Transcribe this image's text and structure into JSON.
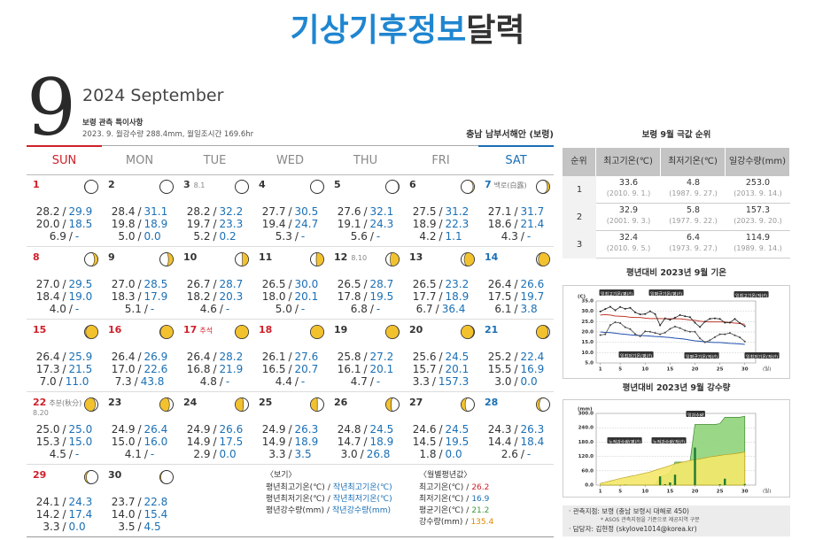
{
  "title": {
    "main": "기상기후정보",
    "sub": "달력"
  },
  "header": {
    "month": "9",
    "year_month": "2024 September",
    "notes_title": "보령 관측 특이사항",
    "notes": "2023. 9. 월강수량 288.4mm, 월일조시간 169.6hr",
    "region": "충남 남부서해안 (보령)"
  },
  "separator": "/",
  "weekdays": [
    "SUN",
    "MON",
    "TUE",
    "WED",
    "THU",
    "FRI",
    "SAT"
  ],
  "days": [
    {
      "date": 1,
      "max": [
        "28.2",
        "29.9"
      ],
      "min": [
        "20.0",
        "18.5"
      ],
      "precip": [
        "6.9",
        "-"
      ]
    },
    {
      "date": 2,
      "max": [
        "28.4",
        "31.1"
      ],
      "min": [
        "19.8",
        "18.9"
      ],
      "precip": [
        "5.0",
        "0.0"
      ]
    },
    {
      "date": 3,
      "lunar": "8.1",
      "max": [
        "28.2",
        "32.2"
      ],
      "min": [
        "19.7",
        "23.3"
      ],
      "precip": [
        "5.2",
        "0.2"
      ]
    },
    {
      "date": 4,
      "max": [
        "27.7",
        "30.5"
      ],
      "min": [
        "19.4",
        "24.7"
      ],
      "precip": [
        "5.3",
        "-"
      ]
    },
    {
      "date": 5,
      "max": [
        "27.6",
        "32.1"
      ],
      "min": [
        "19.1",
        "24.3"
      ],
      "precip": [
        "5.6",
        "-"
      ]
    },
    {
      "date": 6,
      "max": [
        "27.5",
        "31.2"
      ],
      "min": [
        "18.9",
        "22.3"
      ],
      "precip": [
        "4.2",
        "1.1"
      ]
    },
    {
      "date": 7,
      "note": "백로(白露)",
      "max": [
        "27.1",
        "31.7"
      ],
      "min": [
        "18.6",
        "21.4"
      ],
      "precip": [
        "4.3",
        "-"
      ]
    },
    {
      "date": 8,
      "max": [
        "27.0",
        "29.5"
      ],
      "min": [
        "18.4",
        "19.0"
      ],
      "precip": [
        "4.0",
        "-"
      ]
    },
    {
      "date": 9,
      "max": [
        "27.0",
        "28.5"
      ],
      "min": [
        "18.3",
        "17.9"
      ],
      "precip": [
        "5.1",
        "-"
      ]
    },
    {
      "date": 10,
      "max": [
        "26.7",
        "28.7"
      ],
      "min": [
        "18.2",
        "20.3"
      ],
      "precip": [
        "4.6",
        "-"
      ]
    },
    {
      "date": 11,
      "max": [
        "26.5",
        "30.0"
      ],
      "min": [
        "18.0",
        "20.1"
      ],
      "precip": [
        "5.0",
        "-"
      ]
    },
    {
      "date": 12,
      "lunar": "8.10",
      "max": [
        "26.5",
        "28.7"
      ],
      "min": [
        "17.8",
        "19.5"
      ],
      "precip": [
        "6.8",
        "-"
      ]
    },
    {
      "date": 13,
      "max": [
        "26.5",
        "23.2"
      ],
      "min": [
        "17.7",
        "18.9"
      ],
      "precip": [
        "6.7",
        "36.4"
      ]
    },
    {
      "date": 14,
      "max": [
        "26.4",
        "26.6"
      ],
      "min": [
        "17.5",
        "19.7"
      ],
      "precip": [
        "6.1",
        "3.8"
      ]
    },
    {
      "date": 15,
      "max": [
        "26.4",
        "25.9"
      ],
      "min": [
        "17.3",
        "21.5"
      ],
      "precip": [
        "7.0",
        "11.0"
      ]
    },
    {
      "date": 16,
      "holiday": true,
      "max": [
        "26.4",
        "26.9"
      ],
      "min": [
        "17.0",
        "22.6"
      ],
      "precip": [
        "7.3",
        "43.8"
      ]
    },
    {
      "date": 17,
      "holiday": true,
      "note": "추석",
      "max": [
        "26.4",
        "28.2"
      ],
      "min": [
        "16.8",
        "21.9"
      ],
      "precip": [
        "4.8",
        "-"
      ]
    },
    {
      "date": 18,
      "holiday": true,
      "max": [
        "26.1",
        "27.6"
      ],
      "min": [
        "16.5",
        "20.7"
      ],
      "precip": [
        "4.4",
        "-"
      ]
    },
    {
      "date": 19,
      "max": [
        "25.8",
        "27.2"
      ],
      "min": [
        "16.1",
        "20.1"
      ],
      "precip": [
        "4.7",
        "-"
      ]
    },
    {
      "date": 20,
      "max": [
        "25.6",
        "24.5"
      ],
      "min": [
        "15.7",
        "20.1"
      ],
      "precip": [
        "3.3",
        "157.3"
      ]
    },
    {
      "date": 21,
      "max": [
        "25.2",
        "22.4"
      ],
      "min": [
        "15.5",
        "16.9"
      ],
      "precip": [
        "3.0",
        "0.0"
      ]
    },
    {
      "date": 22,
      "note": "추분(秋分)",
      "lunar": "8.20",
      "max": [
        "25.0",
        "25.0"
      ],
      "min": [
        "15.3",
        "15.0"
      ],
      "precip": [
        "4.5",
        "-"
      ]
    },
    {
      "date": 23,
      "max": [
        "24.9",
        "26.4"
      ],
      "min": [
        "15.0",
        "16.0"
      ],
      "precip": [
        "4.1",
        "-"
      ]
    },
    {
      "date": 24,
      "max": [
        "24.9",
        "26.6"
      ],
      "min": [
        "14.9",
        "17.5"
      ],
      "precip": [
        "2.9",
        "0.0"
      ]
    },
    {
      "date": 25,
      "max": [
        "24.9",
        "26.3"
      ],
      "min": [
        "14.9",
        "18.9"
      ],
      "precip": [
        "3.3",
        "3.5"
      ]
    },
    {
      "date": 26,
      "max": [
        "24.8",
        "24.5"
      ],
      "min": [
        "14.7",
        "18.9"
      ],
      "precip": [
        "3.0",
        "26.8"
      ]
    },
    {
      "date": 27,
      "max": [
        "24.6",
        "24.5"
      ],
      "min": [
        "14.5",
        "19.5"
      ],
      "precip": [
        "1.8",
        "0.0"
      ]
    },
    {
      "date": 28,
      "max": [
        "24.3",
        "26.3"
      ],
      "min": [
        "14.4",
        "18.4"
      ],
      "precip": [
        "2.6",
        "-"
      ]
    },
    {
      "date": 29,
      "max": [
        "24.1",
        "24.3"
      ],
      "min": [
        "14.2",
        "17.4"
      ],
      "precip": [
        "3.3",
        "0.0"
      ]
    },
    {
      "date": 30,
      "max": [
        "23.7",
        "22.8"
      ],
      "min": [
        "14.0",
        "15.4"
      ],
      "precip": [
        "3.5",
        "4.5"
      ]
    }
  ],
  "legend": {
    "title": "〈보기〉",
    "items": [
      [
        "평년최고기온(℃)",
        "작년최고기온(℃)"
      ],
      [
        "평년최저기온(℃)",
        "작년최저기온(℃)"
      ],
      [
        "평년강수량(mm)",
        "작년강수량(mm)"
      ]
    ]
  },
  "monthly_normals": {
    "title": "〈월별평년값〉",
    "items": [
      [
        "최고기온(℃)",
        "26.2"
      ],
      [
        "최저기온(℃)",
        "16.9"
      ],
      [
        "평균기온(℃)",
        "21.2"
      ],
      [
        "강수량(mm)",
        "135.4"
      ]
    ],
    "colors": [
      "#d0202a",
      "#1a6fb5",
      "#3a9a3a",
      "#e08a00"
    ]
  },
  "extremes": {
    "title": "보령 9월 극값 순위",
    "headers": [
      "순위",
      "최고기온(℃)",
      "최저기온(℃)",
      "일강수량(mm)"
    ],
    "rows": [
      {
        "rank": "1",
        "cells": [
          [
            "33.6",
            "(2010. 9. 1.)"
          ],
          [
            "4.8",
            "(1987. 9. 27.)"
          ],
          [
            "253.0",
            "(2013. 9. 14.)"
          ]
        ]
      },
      {
        "rank": "2",
        "cells": [
          [
            "32.9",
            "(2001. 9. 3.)"
          ],
          [
            "5.8",
            "(1977. 9. 22.)"
          ],
          [
            "157.3",
            "(2023. 9. 20.)"
          ]
        ]
      },
      {
        "rank": "3",
        "cells": [
          [
            "32.4",
            "(2010. 9. 5.)"
          ],
          [
            "6.4",
            "(1973. 9. 27.)"
          ],
          [
            "114.9",
            "(1989. 9. 14.)"
          ]
        ]
      }
    ]
  },
  "temp_chart": {
    "title": "평년대비 2023년 9월 기온",
    "y_unit": "(C)",
    "x_unit": "(일)",
    "xlim": [
      0,
      32
    ],
    "ylim": [
      5,
      35
    ],
    "xticks": [
      1,
      5,
      10,
      15,
      20,
      25,
      30
    ],
    "yticks": [
      {
        "value": 35,
        "label": "35.0"
      },
      {
        "value": 30,
        "label": "30.0"
      },
      {
        "value": 25,
        "label": "25.0"
      },
      {
        "value": 20,
        "label": "20.0"
      },
      {
        "value": 15,
        "label": "15.0"
      },
      {
        "value": 10,
        "label": "10.0"
      },
      {
        "value": 5,
        "label": "5.0"
      }
    ],
    "labels": [
      "일최고기온(평년)",
      "일평균기온(평년)",
      "일최고기온(작년)",
      "일최저기온(평년)",
      "일평균기온(작년)",
      "일최저기온(작년)"
    ],
    "grid": true
  },
  "precip_chart": {
    "title": "평년대비 2023년 9월 강수량",
    "y_unit": "(mm)",
    "x_unit": "(일)",
    "xlim": [
      0,
      32
    ],
    "ylim": [
      0,
      300
    ],
    "xticks": [
      1,
      5,
      10,
      15,
      20,
      25,
      30
    ],
    "yticks": [
      {
        "value": 300,
        "label": "300.0"
      },
      {
        "value": 240,
        "label": "240.0"
      },
      {
        "value": 180,
        "label": "180.0"
      },
      {
        "value": 120,
        "label": "120.0"
      },
      {
        "value": 60,
        "label": "60.0"
      },
      {
        "value": 0,
        "label": "0.0"
      }
    ],
    "labels": [
      "누적강수량(평년)",
      "누적강수량(작년)",
      "일강수량"
    ],
    "grid": true
  },
  "footer": {
    "station": "· 관측지점: 보령 (충남 보령시 대해로 450)",
    "note": "* ASOS 관측지점을 기준으로 제공지역 구분",
    "contact": "· 담당자: 김현정 (skylove1014@korea.kr)"
  }
}
